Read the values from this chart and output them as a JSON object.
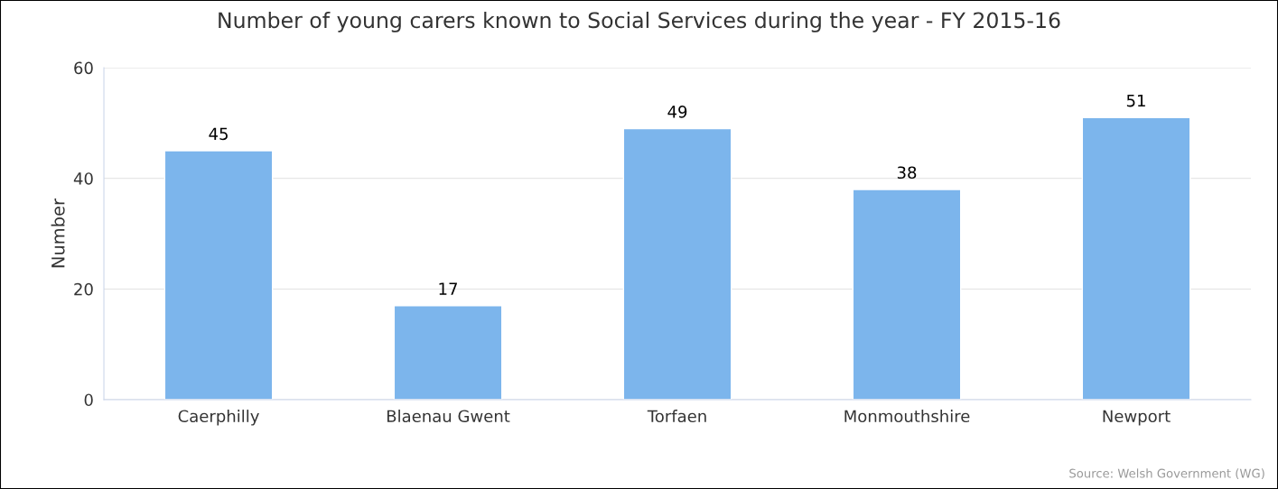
{
  "chart_data": {
    "type": "bar",
    "title": "Number of young carers known to Social Services during the year - FY 2015-16",
    "ylabel": "Number",
    "categories": [
      "Caerphilly",
      "Blaenau Gwent",
      "Torfaen",
      "Monmouthshire",
      "Newport"
    ],
    "values": [
      45,
      17,
      49,
      38,
      51
    ],
    "color": "#7cb5ec",
    "ylim": [
      0,
      60
    ],
    "yticks": [
      0,
      20,
      40,
      60
    ],
    "grid": "y",
    "data_labels": true,
    "annotations": [
      "Source: Welsh Government (WG)"
    ]
  }
}
